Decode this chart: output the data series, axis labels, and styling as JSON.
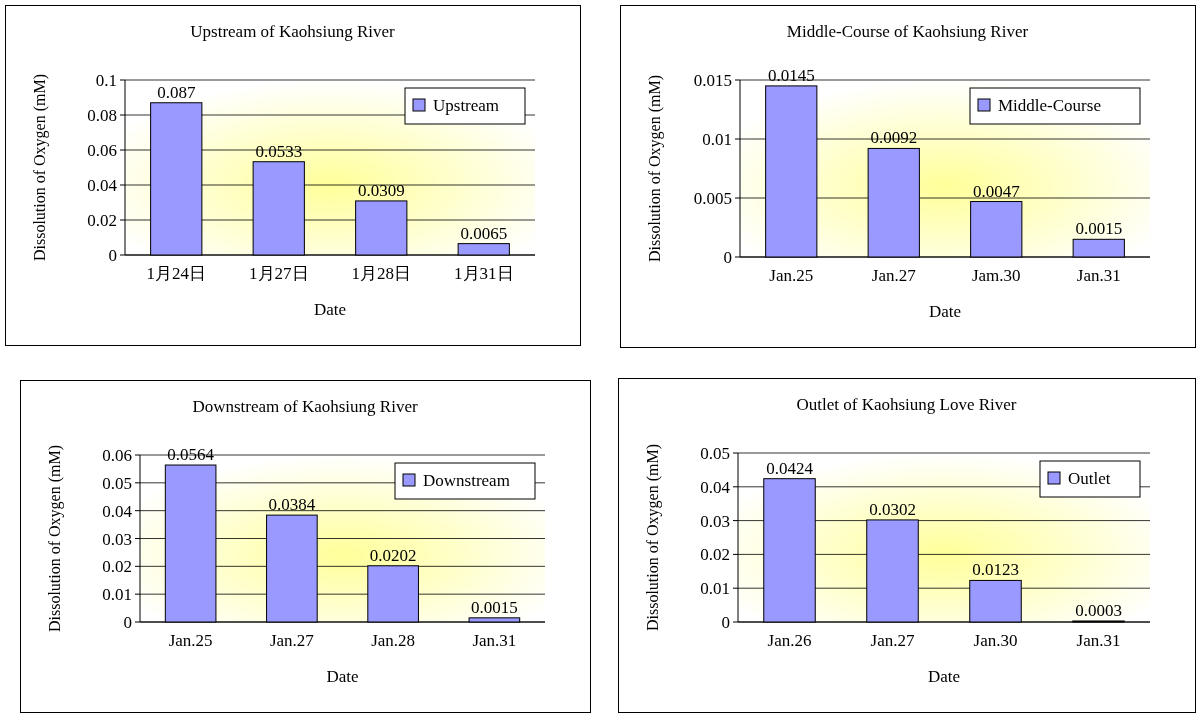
{
  "chart_data": [
    {
      "type": "bar",
      "title": "Upstream of Kaohsiung River",
      "xlabel": "Date",
      "ylabel": "Dissolution of Oxygen (mM)",
      "categories": [
        "1月24日",
        "1月27日",
        "1月28日",
        "1月31日"
      ],
      "series": [
        {
          "name": "Upstream",
          "color": "#9999ff",
          "values": [
            0.087,
            0.0533,
            0.0309,
            0.0065
          ]
        }
      ],
      "ylim": [
        0,
        0.1
      ],
      "yticks": [
        0,
        0.02,
        0.04,
        0.06,
        0.08,
        0.1
      ],
      "grid": "y",
      "legend": "top right",
      "data_labels": true
    },
    {
      "type": "bar",
      "title": "Middle-Course of Kaohsiung River",
      "xlabel": "Date",
      "ylabel": "Dissolution of Oxygen (mM)",
      "categories": [
        "Jan.25",
        "Jan.27",
        "Jam.30",
        "Jan.31"
      ],
      "series": [
        {
          "name": "Middle-Course",
          "color": "#9999ff",
          "values": [
            0.0145,
            0.0092,
            0.0047,
            0.0015
          ]
        }
      ],
      "ylim": [
        0,
        0.015
      ],
      "yticks": [
        0,
        0.005,
        0.01,
        0.015
      ],
      "grid": "y",
      "legend": "top right",
      "data_labels": true
    },
    {
      "type": "bar",
      "title": "Downstream of Kaohsiung River",
      "xlabel": "Date",
      "ylabel": "Dissolution of Oxygen (mM)",
      "categories": [
        "Jan.25",
        "Jan.27",
        "Jan.28",
        "Jan.31"
      ],
      "series": [
        {
          "name": "Downstream",
          "color": "#9999ff",
          "values": [
            0.0564,
            0.0384,
            0.0202,
            0.0015
          ]
        }
      ],
      "ylim": [
        0,
        0.06
      ],
      "yticks": [
        0,
        0.01,
        0.02,
        0.03,
        0.04,
        0.05,
        0.06
      ],
      "grid": "y",
      "legend": "top right",
      "data_labels": true
    },
    {
      "type": "bar",
      "title": "Outlet of Kaohsiung Love River",
      "xlabel": "Date",
      "ylabel": "Dissolution of Oxygen (mM)",
      "categories": [
        "Jan.26",
        "Jan.27",
        "Jan.30",
        "Jan.31"
      ],
      "series": [
        {
          "name": "Outlet",
          "color": "#9999ff",
          "values": [
            0.0424,
            0.0302,
            0.0123,
            0.0003
          ]
        }
      ],
      "ylim": [
        0,
        0.05
      ],
      "yticks": [
        0,
        0.01,
        0.02,
        0.03,
        0.04,
        0.05
      ],
      "grid": "y",
      "legend": "top right",
      "data_labels": true
    }
  ]
}
